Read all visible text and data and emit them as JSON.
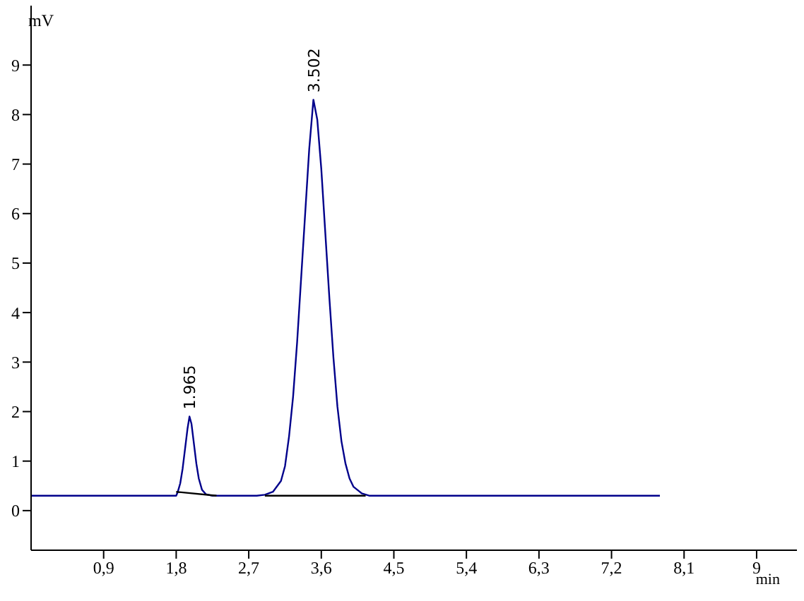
{
  "chart_data": {
    "type": "line",
    "xlabel": "min",
    "ylabel": "mV",
    "xlim": [
      0,
      9.5
    ],
    "ylim": [
      -0.8,
      10.2
    ],
    "xticks": [
      {
        "value": 0.9,
        "label": "0,9"
      },
      {
        "value": 1.8,
        "label": "1,8"
      },
      {
        "value": 2.7,
        "label": "2,7"
      },
      {
        "value": 3.6,
        "label": "3,6"
      },
      {
        "value": 4.5,
        "label": "4,5"
      },
      {
        "value": 5.4,
        "label": "5,4"
      },
      {
        "value": 6.3,
        "label": "6,3"
      },
      {
        "value": 7.2,
        "label": "7,2"
      },
      {
        "value": 8.1,
        "label": "8,1"
      },
      9
    ],
    "yticks": [
      0,
      1,
      2,
      3,
      4,
      5,
      6,
      7,
      8,
      9
    ],
    "grid": false,
    "marker": "none",
    "line_style": "solid",
    "series": [
      {
        "color": "#00008b",
        "x": [
          0,
          1.8,
          1.82,
          1.85,
          1.88,
          1.91,
          1.94,
          1.965,
          1.99,
          2.02,
          2.05,
          2.08,
          2.12,
          2.17,
          2.25,
          2.8,
          2.9,
          3.0,
          3.1,
          3.15,
          3.2,
          3.25,
          3.3,
          3.35,
          3.4,
          3.45,
          3.502,
          3.55,
          3.6,
          3.65,
          3.7,
          3.75,
          3.8,
          3.85,
          3.9,
          3.95,
          4.0,
          4.1,
          4.2,
          7.8
        ],
        "values": [
          0.3,
          0.3,
          0.38,
          0.55,
          0.85,
          1.25,
          1.65,
          1.9,
          1.75,
          1.35,
          0.95,
          0.65,
          0.42,
          0.33,
          0.3,
          0.3,
          0.32,
          0.38,
          0.6,
          0.9,
          1.5,
          2.3,
          3.4,
          4.7,
          6.0,
          7.3,
          8.3,
          7.9,
          6.9,
          5.6,
          4.3,
          3.1,
          2.1,
          1.4,
          0.95,
          0.65,
          0.48,
          0.35,
          0.3,
          0.3
        ]
      },
      {
        "color": "#000000",
        "x": [
          1.8,
          2.3
        ],
        "values": [
          0.38,
          0.3
        ]
      },
      {
        "color": "#000000",
        "x": [
          2.9,
          4.15
        ],
        "values": [
          0.3,
          0.3
        ]
      }
    ],
    "annotations": [
      {
        "text": "1.965",
        "x": 1.965,
        "y": 1.9
      },
      {
        "text": "3.502",
        "x": 3.502,
        "y": 8.3
      }
    ]
  }
}
